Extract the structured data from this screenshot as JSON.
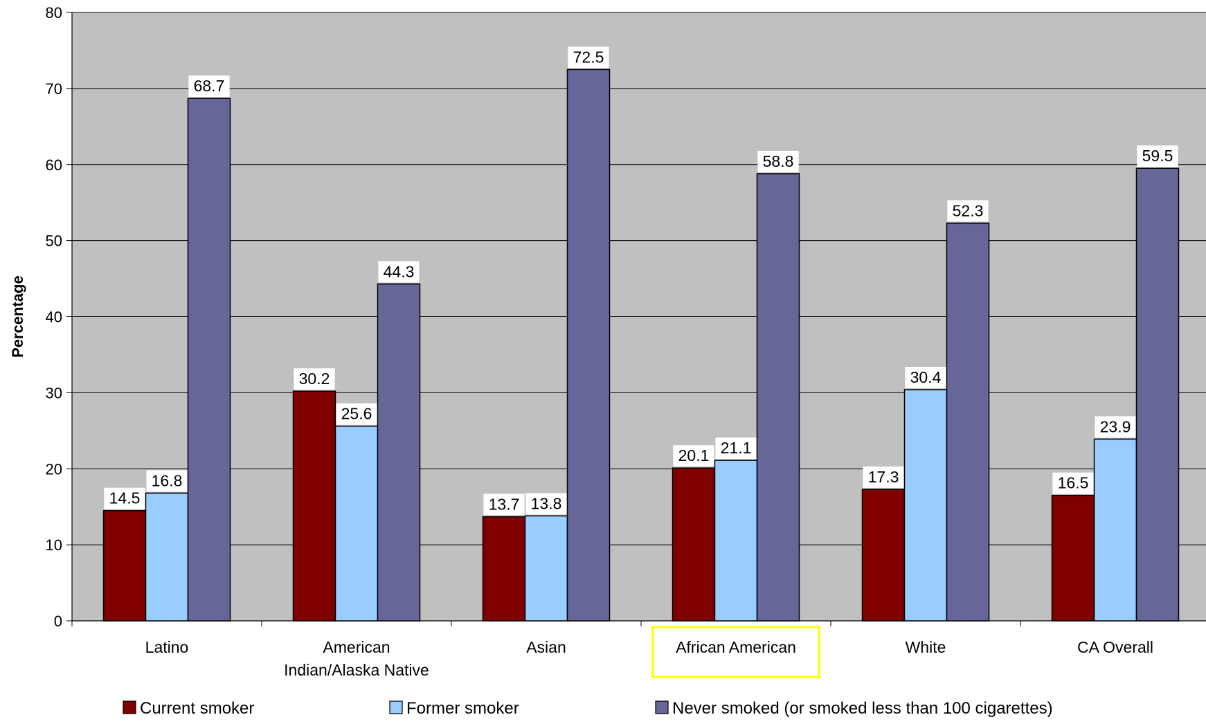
{
  "chart_data": {
    "type": "bar",
    "title": "",
    "xlabel": "",
    "ylabel": "Percentage",
    "ylim": [
      0,
      80
    ],
    "yticks": [
      0,
      10,
      20,
      30,
      40,
      50,
      60,
      70,
      80
    ],
    "grid": true,
    "legend_position": "bottom",
    "plot_background": "#C0C0C0",
    "categories": [
      [
        "Latino"
      ],
      [
        "American",
        "Indian/Alaska Native"
      ],
      [
        "Asian"
      ],
      [
        "African American"
      ],
      [
        "White"
      ],
      [
        "CA Overall"
      ]
    ],
    "highlighted_category_index": 3,
    "highlight_color": "#FFFF00",
    "series": [
      {
        "name": "Current smoker",
        "color": "#800000",
        "values": [
          14.5,
          30.2,
          13.7,
          20.1,
          17.3,
          16.5
        ],
        "labels": [
          "14.5",
          "30.2",
          "13.7",
          "20.1",
          "17.3",
          "16.5"
        ]
      },
      {
        "name": "Former smoker",
        "color": "#99CCFF",
        "values": [
          16.8,
          25.6,
          13.8,
          21.1,
          30.4,
          23.9
        ],
        "labels": [
          "16.8",
          "25.6",
          "13.8",
          "21.1",
          "30.4",
          "23.9"
        ]
      },
      {
        "name": "Never smoked (or smoked less than 100 cigarettes)",
        "color": "#666699",
        "values": [
          68.7,
          44.3,
          72.5,
          58.8,
          52.3,
          59.5
        ],
        "labels": [
          "68.7",
          "44.3",
          "72.5",
          "58.8",
          "52.3",
          "59.5"
        ]
      }
    ]
  }
}
